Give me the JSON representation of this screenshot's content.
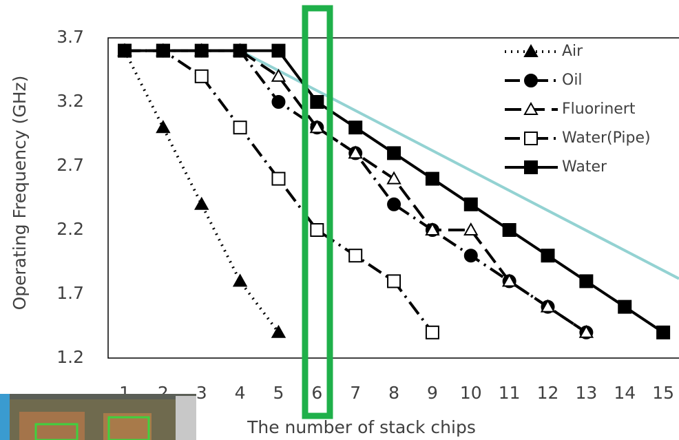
{
  "chart_data": {
    "type": "line",
    "xlabel": "The number of stack chips",
    "ylabel": "Operating Frequency (GHz)",
    "xlim": [
      0.57,
      15.41
    ],
    "ylim": [
      1.2,
      3.7
    ],
    "xticks": [
      1,
      2,
      3,
      4,
      5,
      6,
      7,
      8,
      9,
      10,
      11,
      12,
      13,
      14,
      15
    ],
    "yticks": [
      1.2,
      1.7,
      2.2,
      2.7,
      3.2,
      3.7
    ],
    "grid": false,
    "legend": "upper right",
    "series": [
      {
        "name": "Air",
        "color": "#000000",
        "marker": "triangle-filled",
        "line_style": "dotted",
        "x": [
          1,
          2,
          3,
          4,
          5
        ],
        "values": [
          3.6,
          3.0,
          2.4,
          1.8,
          1.4
        ]
      },
      {
        "name": "Oil",
        "color": "#000000",
        "marker": "circle-filled",
        "line_style": "dash-dot",
        "x": [
          1,
          2,
          3,
          4,
          5,
          6,
          7,
          8,
          9,
          10,
          11,
          12,
          13
        ],
        "values": [
          3.6,
          3.6,
          3.6,
          3.6,
          3.2,
          3.0,
          2.8,
          2.4,
          2.2,
          2.0,
          1.8,
          1.6,
          1.4
        ]
      },
      {
        "name": "Fluorinert",
        "color": "#000000",
        "marker": "triangle-open",
        "line_style": "dashed",
        "x": [
          1,
          2,
          3,
          4,
          5,
          6,
          7,
          8,
          9,
          10,
          11,
          12,
          13
        ],
        "values": [
          3.6,
          3.6,
          3.6,
          3.6,
          3.4,
          3.0,
          2.8,
          2.6,
          2.2,
          2.2,
          1.8,
          1.6,
          1.4
        ]
      },
      {
        "name": "Water(Pipe)",
        "color": "#000000",
        "marker": "square-open",
        "line_style": "dash-dot",
        "x": [
          1,
          2,
          3,
          4,
          5,
          6,
          7,
          8,
          9
        ],
        "values": [
          3.6,
          3.6,
          3.4,
          3.0,
          2.6,
          2.2,
          2.0,
          1.8,
          1.4
        ]
      },
      {
        "name": "Water",
        "color": "#000000",
        "marker": "square-filled",
        "line_style": "solid",
        "x": [
          1,
          2,
          3,
          4,
          5,
          6,
          7,
          8,
          9,
          10,
          11,
          12,
          13,
          14,
          15
        ],
        "values": [
          3.6,
          3.6,
          3.6,
          3.6,
          3.6,
          3.2,
          3.0,
          2.8,
          2.6,
          2.4,
          2.2,
          2.0,
          1.8,
          1.6,
          1.4
        ]
      }
    ],
    "trend": {
      "color": "#93d2d2",
      "x": [
        4,
        15.41
      ],
      "values": [
        3.6,
        1.82
      ]
    }
  }
}
